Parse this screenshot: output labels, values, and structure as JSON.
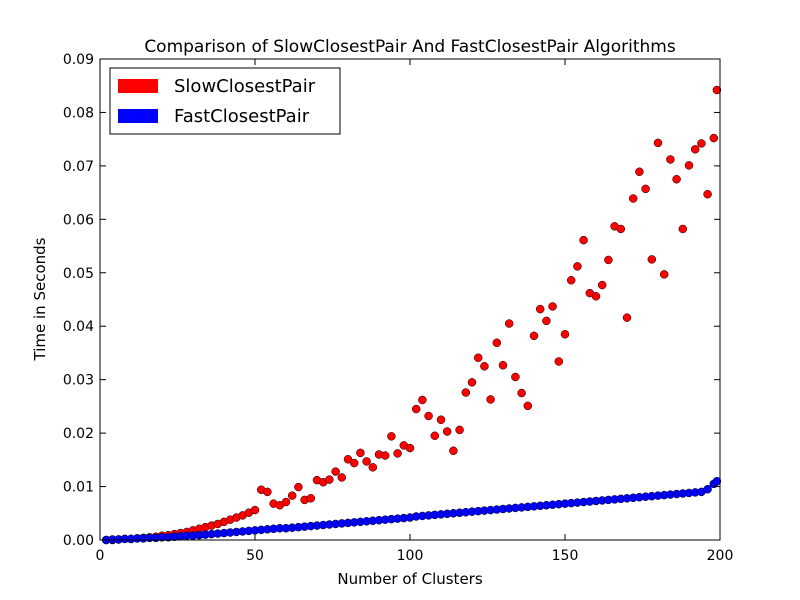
{
  "chart_data": {
    "type": "scatter",
    "title": "Comparison of SlowClosestPair And FastClosestPair Algorithms",
    "xlabel": "Number of Clusters",
    "ylabel": "Time in Seconds",
    "xlim": [
      0,
      200
    ],
    "ylim": [
      0,
      0.09
    ],
    "x_ticks": [
      0,
      50,
      100,
      150,
      200
    ],
    "x_tick_labels": [
      "0",
      "50",
      "100",
      "150",
      "200"
    ],
    "y_ticks": [
      0,
      0.01,
      0.02,
      0.03,
      0.04,
      0.05,
      0.06,
      0.07,
      0.08,
      0.09
    ],
    "y_tick_labels": [
      "0.00",
      "0.01",
      "0.02",
      "0.03",
      "0.04",
      "0.05",
      "0.06",
      "0.07",
      "0.08",
      "0.09"
    ],
    "grid": false,
    "legend_position": "top-left",
    "series": [
      {
        "name": "SlowClosestPair",
        "color": "#ff0000",
        "points": [
          [
            2,
            0
          ],
          [
            4,
            0
          ],
          [
            6,
            0.0001
          ],
          [
            8,
            0.0002
          ],
          [
            10,
            0.0002
          ],
          [
            12,
            0.0003
          ],
          [
            14,
            0.0004
          ],
          [
            16,
            0.0005
          ],
          [
            18,
            0.0006
          ],
          [
            20,
            0.0008
          ],
          [
            22,
            0.0009
          ],
          [
            24,
            0.0011
          ],
          [
            26,
            0.0013
          ],
          [
            28,
            0.0015
          ],
          [
            30,
            0.0018
          ],
          [
            32,
            0.0021
          ],
          [
            34,
            0.0024
          ],
          [
            36,
            0.0027
          ],
          [
            38,
            0.003
          ],
          [
            40,
            0.0034
          ],
          [
            42,
            0.0038
          ],
          [
            44,
            0.0042
          ],
          [
            46,
            0.0046
          ],
          [
            48,
            0.0051
          ],
          [
            50,
            0.0056
          ],
          [
            52,
            0.0094
          ],
          [
            54,
            0.009
          ],
          [
            56,
            0.0068
          ],
          [
            58,
            0.0065
          ],
          [
            60,
            0.0071
          ],
          [
            62,
            0.0083
          ],
          [
            64,
            0.0099
          ],
          [
            66,
            0.0075
          ],
          [
            68,
            0.0078
          ],
          [
            70,
            0.0112
          ],
          [
            72,
            0.0108
          ],
          [
            74,
            0.0113
          ],
          [
            76,
            0.0128
          ],
          [
            78,
            0.0117
          ],
          [
            80,
            0.0151
          ],
          [
            82,
            0.0144
          ],
          [
            84,
            0.0163
          ],
          [
            86,
            0.0147
          ],
          [
            88,
            0.0136
          ],
          [
            90,
            0.016
          ],
          [
            92,
            0.0158
          ],
          [
            94,
            0.0194
          ],
          [
            96,
            0.0162
          ],
          [
            98,
            0.0177
          ],
          [
            100,
            0.0172
          ],
          [
            102,
            0.0245
          ],
          [
            104,
            0.0262
          ],
          [
            106,
            0.0232
          ],
          [
            108,
            0.0195
          ],
          [
            110,
            0.0225
          ],
          [
            112,
            0.0203
          ],
          [
            114,
            0.0167
          ],
          [
            116,
            0.0206
          ],
          [
            118,
            0.0276
          ],
          [
            120,
            0.0295
          ],
          [
            122,
            0.0341
          ],
          [
            124,
            0.0325
          ],
          [
            126,
            0.0263
          ],
          [
            128,
            0.0369
          ],
          [
            130,
            0.0327
          ],
          [
            132,
            0.0405
          ],
          [
            134,
            0.0305
          ],
          [
            136,
            0.0275
          ],
          [
            138,
            0.0251
          ],
          [
            140,
            0.0382
          ],
          [
            142,
            0.0432
          ],
          [
            144,
            0.041
          ],
          [
            146,
            0.0437
          ],
          [
            148,
            0.0334
          ],
          [
            150,
            0.0385
          ],
          [
            152,
            0.0486
          ],
          [
            154,
            0.0512
          ],
          [
            156,
            0.0561
          ],
          [
            158,
            0.0462
          ],
          [
            160,
            0.0456
          ],
          [
            162,
            0.0477
          ],
          [
            164,
            0.0524
          ],
          [
            166,
            0.0587
          ],
          [
            168,
            0.0582
          ],
          [
            170,
            0.0416
          ],
          [
            172,
            0.0639
          ],
          [
            174,
            0.0689
          ],
          [
            176,
            0.0657
          ],
          [
            178,
            0.0525
          ],
          [
            180,
            0.0743
          ],
          [
            182,
            0.0497
          ],
          [
            184,
            0.0712
          ],
          [
            186,
            0.0675
          ],
          [
            188,
            0.0582
          ],
          [
            190,
            0.0701
          ],
          [
            192,
            0.0731
          ],
          [
            194,
            0.0742
          ],
          [
            196,
            0.0647
          ],
          [
            198,
            0.0752
          ],
          [
            199,
            0.0842
          ]
        ]
      },
      {
        "name": "FastClosestPair",
        "color": "#0000ff",
        "points": [
          [
            2,
            0
          ],
          [
            4,
            0.0001
          ],
          [
            6,
            0.0001
          ],
          [
            8,
            0.0002
          ],
          [
            10,
            0.0002
          ],
          [
            12,
            0.0003
          ],
          [
            14,
            0.0003
          ],
          [
            16,
            0.0004
          ],
          [
            18,
            0.0004
          ],
          [
            20,
            0.0005
          ],
          [
            22,
            0.0005
          ],
          [
            24,
            0.0006
          ],
          [
            26,
            0.0007
          ],
          [
            28,
            0.0008
          ],
          [
            30,
            0.0008
          ],
          [
            32,
            0.0009
          ],
          [
            34,
            0.001
          ],
          [
            36,
            0.0011
          ],
          [
            38,
            0.0012
          ],
          [
            40,
            0.0013
          ],
          [
            42,
            0.0014
          ],
          [
            44,
            0.0015
          ],
          [
            46,
            0.0016
          ],
          [
            48,
            0.0017
          ],
          [
            50,
            0.0018
          ],
          [
            52,
            0.0019
          ],
          [
            54,
            0.002
          ],
          [
            56,
            0.0021
          ],
          [
            58,
            0.0022
          ],
          [
            60,
            0.0022
          ],
          [
            62,
            0.0023
          ],
          [
            64,
            0.0024
          ],
          [
            66,
            0.0025
          ],
          [
            68,
            0.0026
          ],
          [
            70,
            0.0027
          ],
          [
            72,
            0.0028
          ],
          [
            74,
            0.0029
          ],
          [
            76,
            0.003
          ],
          [
            78,
            0.0031
          ],
          [
            80,
            0.0032
          ],
          [
            82,
            0.0033
          ],
          [
            84,
            0.0034
          ],
          [
            86,
            0.0035
          ],
          [
            88,
            0.0036
          ],
          [
            90,
            0.0037
          ],
          [
            92,
            0.0038
          ],
          [
            94,
            0.0039
          ],
          [
            96,
            0.004
          ],
          [
            98,
            0.0041
          ],
          [
            100,
            0.0042
          ],
          [
            102,
            0.0044
          ],
          [
            104,
            0.0045
          ],
          [
            106,
            0.0046
          ],
          [
            108,
            0.0047
          ],
          [
            110,
            0.0048
          ],
          [
            112,
            0.0049
          ],
          [
            114,
            0.005
          ],
          [
            116,
            0.0051
          ],
          [
            118,
            0.0052
          ],
          [
            120,
            0.0053
          ],
          [
            122,
            0.0054
          ],
          [
            124,
            0.0055
          ],
          [
            126,
            0.0056
          ],
          [
            128,
            0.0057
          ],
          [
            130,
            0.0058
          ],
          [
            132,
            0.0059
          ],
          [
            134,
            0.006
          ],
          [
            136,
            0.0061
          ],
          [
            138,
            0.0062
          ],
          [
            140,
            0.0063
          ],
          [
            142,
            0.0064
          ],
          [
            144,
            0.0065
          ],
          [
            146,
            0.0066
          ],
          [
            148,
            0.0067
          ],
          [
            150,
            0.0068
          ],
          [
            152,
            0.0069
          ],
          [
            154,
            0.007
          ],
          [
            156,
            0.0071
          ],
          [
            158,
            0.0072
          ],
          [
            160,
            0.0073
          ],
          [
            162,
            0.0074
          ],
          [
            164,
            0.0075
          ],
          [
            166,
            0.0076
          ],
          [
            168,
            0.0077
          ],
          [
            170,
            0.0078
          ],
          [
            172,
            0.0079
          ],
          [
            174,
            0.008
          ],
          [
            176,
            0.0081
          ],
          [
            178,
            0.0082
          ],
          [
            180,
            0.0083
          ],
          [
            182,
            0.0084
          ],
          [
            184,
            0.0085
          ],
          [
            186,
            0.0086
          ],
          [
            188,
            0.0087
          ],
          [
            190,
            0.0088
          ],
          [
            192,
            0.0089
          ],
          [
            194,
            0.009
          ],
          [
            196,
            0.0095
          ],
          [
            198,
            0.0105
          ],
          [
            199,
            0.011
          ]
        ]
      }
    ]
  }
}
